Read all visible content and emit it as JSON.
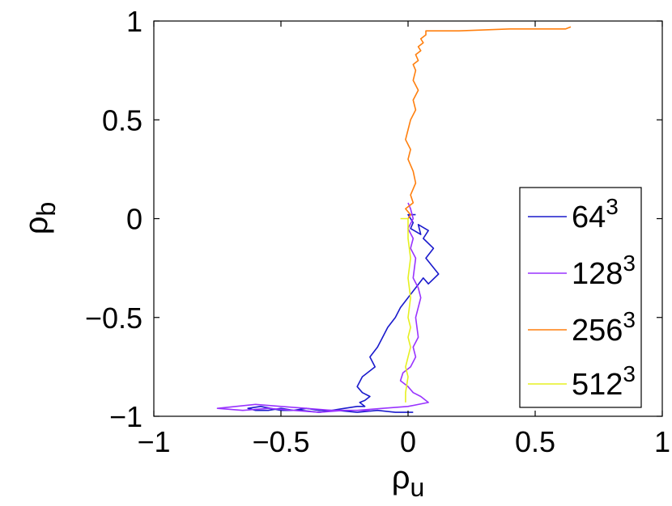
{
  "chart_data": {
    "type": "line",
    "xlabel": {
      "base": "ρ",
      "sub": "u"
    },
    "ylabel": {
      "base": "ρ",
      "sub": "b"
    },
    "xlim": [
      -1,
      1
    ],
    "ylim": [
      -1,
      1
    ],
    "xticks": [
      -1,
      -0.5,
      0,
      0.5,
      1
    ],
    "yticks": [
      -1,
      -0.5,
      0,
      0.5,
      1
    ],
    "xtick_labels": [
      "−1",
      "−0.5",
      "0",
      "0.5",
      "1"
    ],
    "ytick_labels": [
      "−1",
      "−0.5",
      "0",
      "0.5",
      "1"
    ],
    "grid": false,
    "legend_position": "right",
    "series": [
      {
        "name": "64",
        "sup": "3",
        "color": "#1a1acc",
        "x": [
          0.03,
          0.0,
          0.02,
          0.01,
          0.05,
          0.04,
          0.08,
          0.06,
          0.1,
          0.07,
          0.12,
          0.08,
          0.06,
          0.03,
          0.0,
          -0.03,
          -0.05,
          -0.08,
          -0.1,
          -0.12,
          -0.15,
          -0.13,
          -0.18,
          -0.2,
          -0.18,
          -0.15,
          -0.17,
          -0.19,
          -0.17,
          -0.2,
          -0.25,
          -0.3,
          -0.35,
          -0.4,
          -0.45,
          -0.5,
          -0.55,
          -0.6,
          -0.63,
          -0.58,
          -0.5,
          -0.42,
          -0.35,
          -0.28,
          -0.2,
          -0.12,
          -0.05,
          0.02
        ],
        "y": [
          0.02,
          0.02,
          -0.02,
          -0.05,
          -0.08,
          -0.03,
          -0.06,
          -0.1,
          -0.15,
          -0.2,
          -0.28,
          -0.33,
          -0.3,
          -0.35,
          -0.4,
          -0.45,
          -0.5,
          -0.55,
          -0.6,
          -0.65,
          -0.7,
          -0.75,
          -0.8,
          -0.85,
          -0.88,
          -0.9,
          -0.92,
          -0.93,
          -0.95,
          -0.95,
          -0.96,
          -0.97,
          -0.97,
          -0.96,
          -0.97,
          -0.96,
          -0.97,
          -0.97,
          -0.96,
          -0.95,
          -0.97,
          -0.97,
          -0.98,
          -0.97,
          -0.98,
          -0.97,
          -0.98,
          -0.98
        ]
      },
      {
        "name": "128",
        "sup": "3",
        "color": "#9933ff",
        "x": [
          0.0,
          0.01,
          0.02,
          0.0,
          0.02,
          0.01,
          0.03,
          0.02,
          0.04,
          0.05,
          0.03,
          0.04,
          0.02,
          0.03,
          0.01,
          -0.02,
          -0.03,
          0.0,
          0.02,
          0.05,
          0.08,
          0.0,
          -0.1,
          -0.2,
          -0.3,
          -0.4,
          -0.5,
          -0.6,
          -0.75,
          -0.65,
          -0.55,
          -0.45,
          -0.35,
          -0.25,
          -0.15
        ],
        "y": [
          0.08,
          0.05,
          0.0,
          -0.05,
          -0.1,
          -0.15,
          -0.2,
          -0.3,
          -0.35,
          -0.4,
          -0.5,
          -0.6,
          -0.65,
          -0.7,
          -0.75,
          -0.78,
          -0.82,
          -0.85,
          -0.88,
          -0.9,
          -0.93,
          -0.95,
          -0.96,
          -0.97,
          -0.97,
          -0.96,
          -0.95,
          -0.94,
          -0.96,
          -0.97,
          -0.96,
          -0.97,
          -0.98,
          -0.97,
          -0.97
        ]
      },
      {
        "name": "256",
        "sup": "3",
        "color": "#ff7f0e",
        "x": [
          0.0,
          0.01,
          -0.01,
          0.02,
          0.01,
          0.03,
          0.02,
          0.0,
          0.01,
          -0.01,
          0.0,
          0.01,
          0.03,
          0.02,
          0.04,
          0.02,
          0.03,
          0.02,
          0.04,
          0.03,
          0.05,
          0.04,
          0.06,
          0.05,
          0.07,
          0.07,
          0.2,
          0.4,
          0.55,
          0.62,
          0.64
        ],
        "y": [
          0.0,
          0.02,
          0.05,
          0.08,
          0.12,
          0.18,
          0.24,
          0.3,
          0.35,
          0.4,
          0.45,
          0.5,
          0.55,
          0.6,
          0.65,
          0.7,
          0.75,
          0.78,
          0.8,
          0.83,
          0.85,
          0.87,
          0.89,
          0.91,
          0.93,
          0.95,
          0.95,
          0.96,
          0.96,
          0.96,
          0.97
        ]
      },
      {
        "name": "512",
        "sup": "3",
        "color": "#e6f020",
        "x": [
          -0.03,
          0.0,
          0.0,
          0.01,
          0.0,
          0.01,
          0.0,
          0.01,
          0.0,
          0.01,
          0.0,
          -0.01,
          0.0,
          -0.01,
          -0.01
        ],
        "y": [
          0.0,
          0.0,
          -0.1,
          -0.2,
          -0.3,
          -0.4,
          -0.5,
          -0.55,
          -0.6,
          -0.65,
          -0.7,
          -0.75,
          -0.8,
          -0.88,
          -0.93
        ]
      }
    ]
  }
}
